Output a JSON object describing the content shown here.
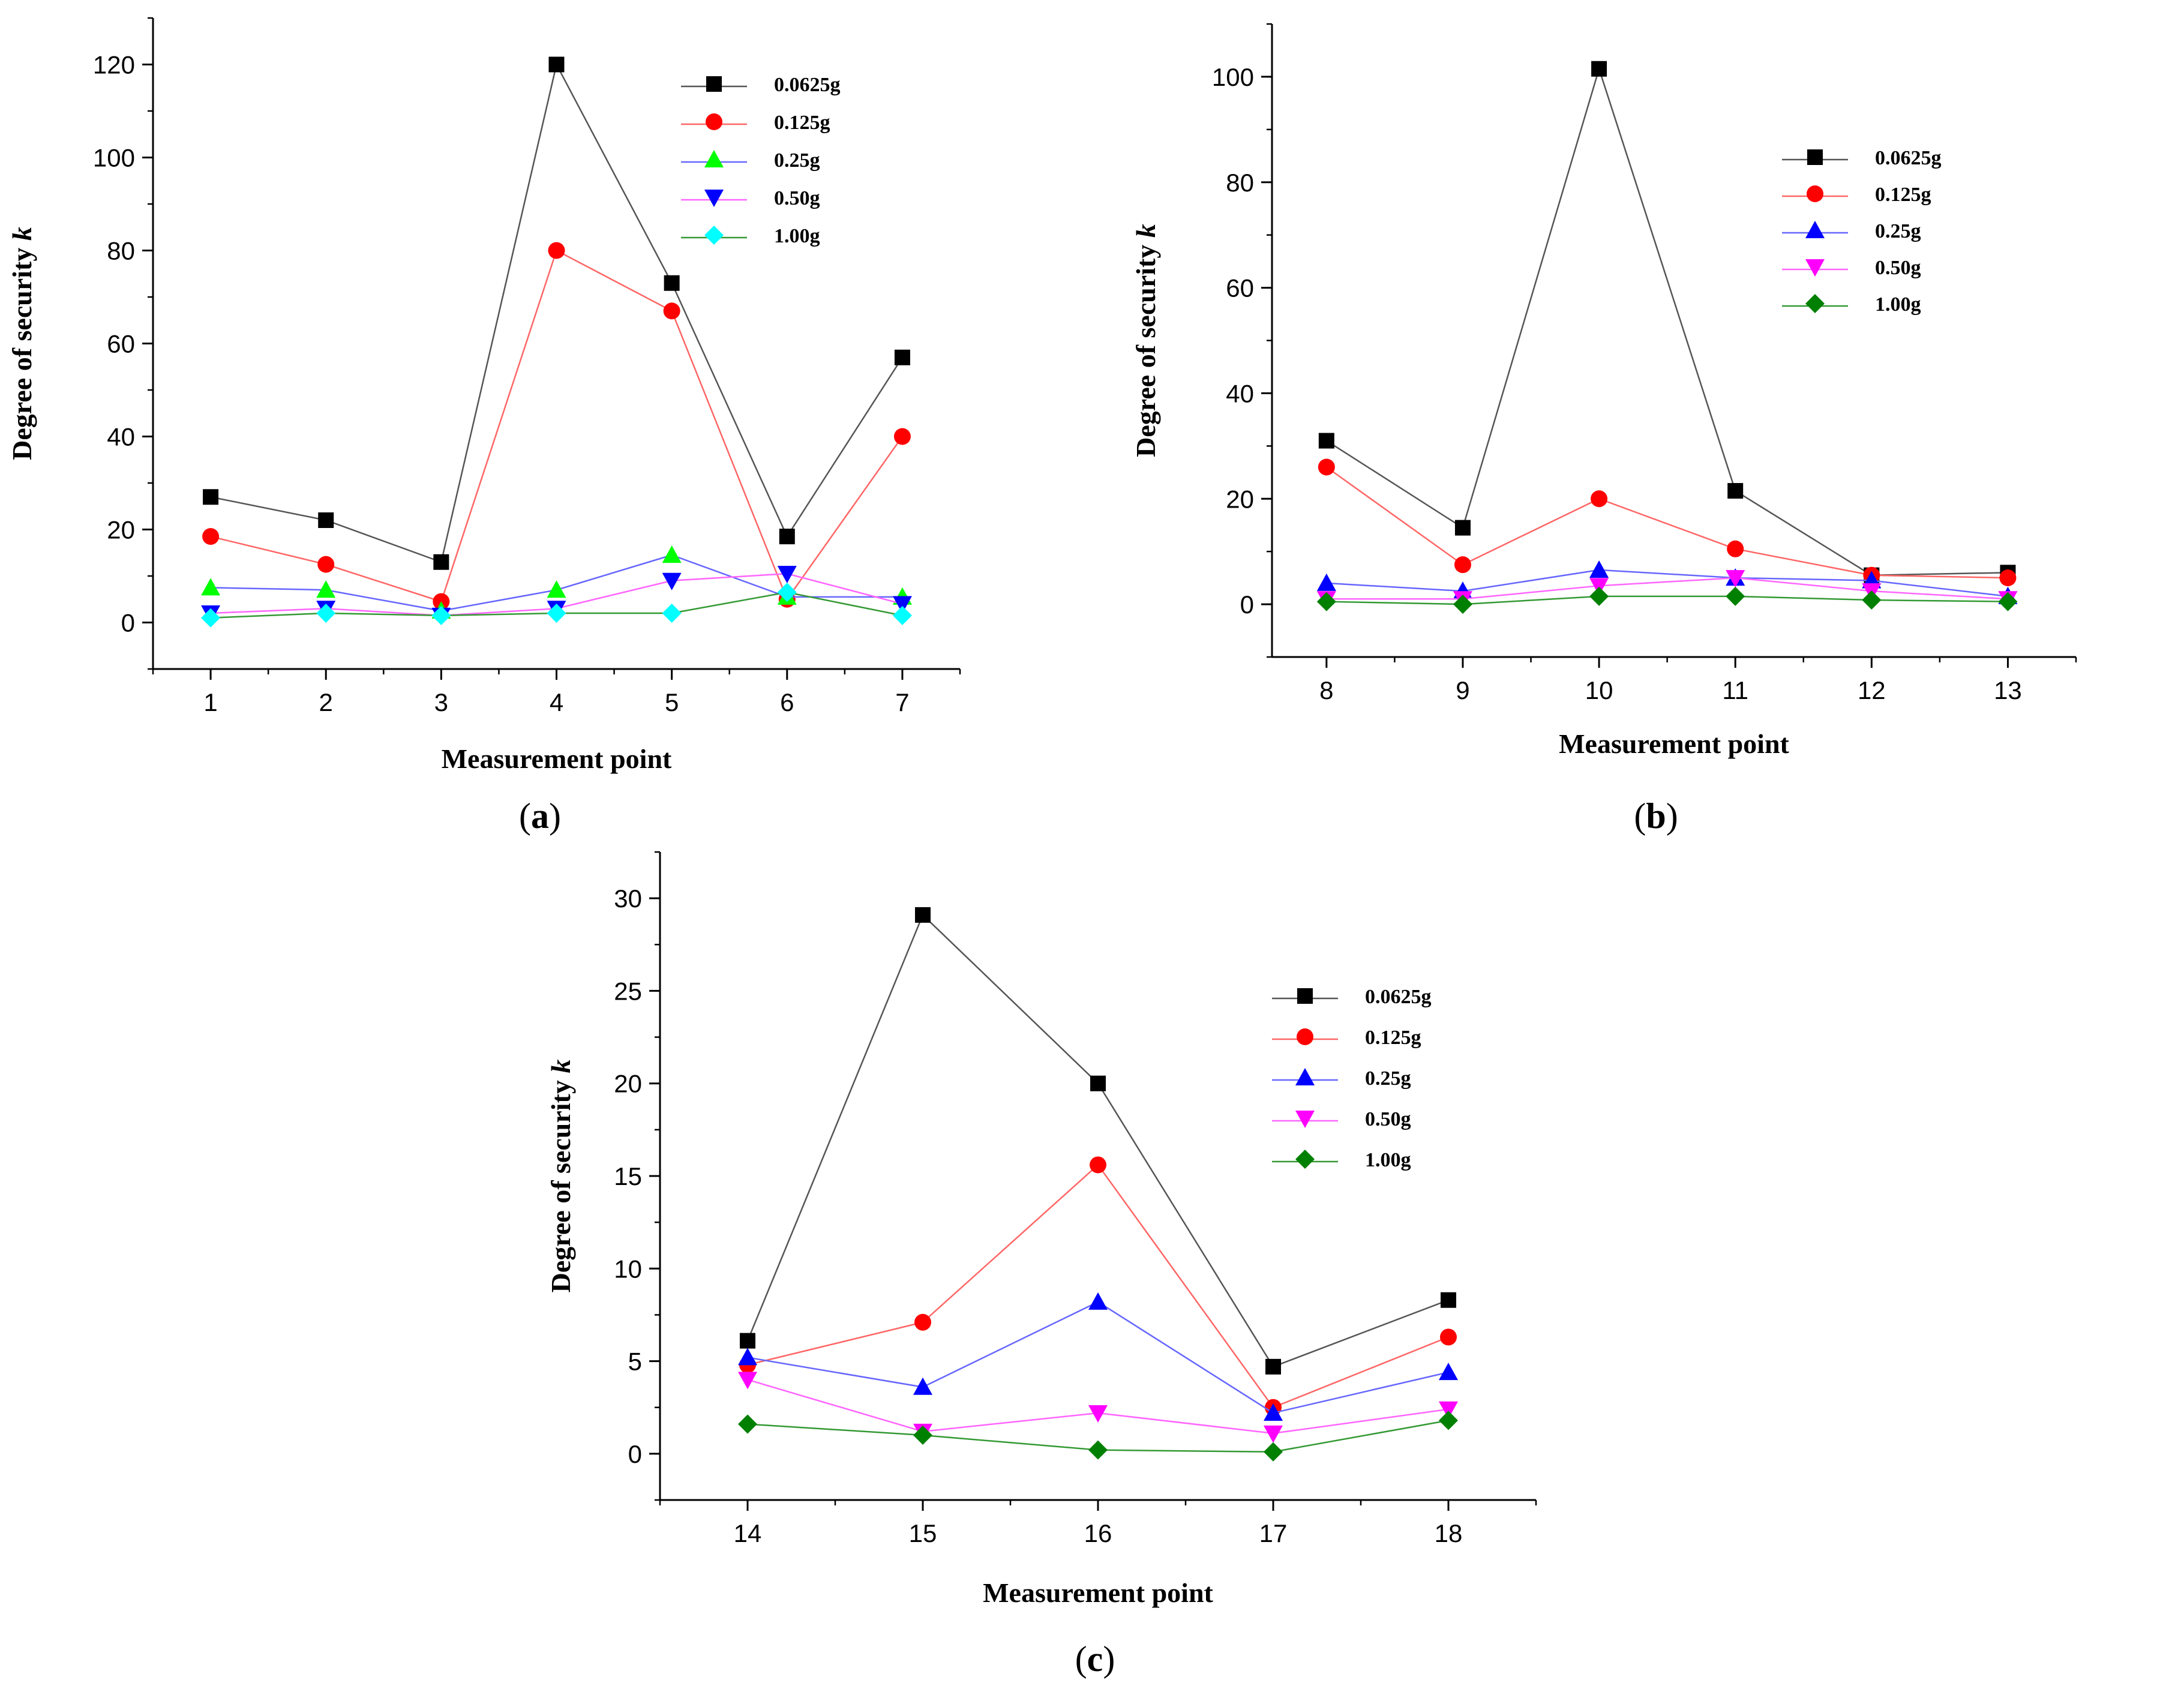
{
  "figure": {
    "panels": [
      {
        "caption_open": "(",
        "caption_letter": "a",
        "caption_close": ")"
      },
      {
        "caption_open": "(",
        "caption_letter": "b",
        "caption_close": ")"
      },
      {
        "caption_open": "(",
        "caption_letter": "c",
        "caption_close": ")"
      }
    ]
  },
  "series_styles": [
    {
      "color": "#000000",
      "line_color": "#555555",
      "marker": "square"
    },
    {
      "color": "#ff0000",
      "line_color": "#ff6666",
      "marker": "circle"
    },
    {
      "color_by_panel": [
        "#00ff00",
        "#0000ff",
        "#0000ff"
      ],
      "line_color_by_panel": [
        "#6666ff",
        "#6666ff",
        "#6666ff"
      ],
      "marker": "triangle-up"
    },
    {
      "color_by_panel": [
        "#0000ff",
        "#ff00ff",
        "#ff00ff"
      ],
      "line_color_by_panel": [
        "#ff66ff",
        "#ff66ff",
        "#ff66ff"
      ],
      "marker_by_panel": [
        "triangle-down",
        "triangle-down",
        "triangle-down"
      ]
    },
    {
      "color_by_panel": [
        "#00ffff",
        "#008000",
        "#008000"
      ],
      "line_color_by_panel": [
        "#339933",
        "#339933",
        "#339933"
      ],
      "marker": "diamond"
    }
  ],
  "chart_data": [
    {
      "type": "line",
      "xlabel": "Measurement point",
      "ylabel_prefix": "Degree of security ",
      "ylabel_italic": "k",
      "ylim": [
        -10,
        130
      ],
      "yticks": [
        0,
        20,
        40,
        60,
        80,
        100,
        120
      ],
      "yticks_minor_step": 10,
      "xlim": [
        0.5,
        7.5
      ],
      "x": [
        1,
        2,
        3,
        4,
        5,
        6,
        7
      ],
      "legend_position": "top-right",
      "series": [
        {
          "name": "0.0625g",
          "values": [
            27,
            22,
            13,
            120,
            73,
            18.5,
            57
          ]
        },
        {
          "name": "0.125g",
          "values": [
            18.5,
            12.5,
            4.5,
            80,
            67,
            5,
            40
          ]
        },
        {
          "name": "0.25g",
          "values": [
            7.5,
            7,
            2.5,
            7,
            14.5,
            5.5,
            5.5
          ]
        },
        {
          "name": "0.50g",
          "values": [
            2,
            3,
            1.5,
            3,
            9,
            10.5,
            4
          ]
        },
        {
          "name": "1.00g",
          "values": [
            1,
            2,
            1.5,
            2,
            2,
            6.5,
            1.5
          ]
        }
      ]
    },
    {
      "type": "line",
      "xlabel": "Measurement point",
      "ylabel_prefix": "Degree of security ",
      "ylabel_italic": "k",
      "ylim": [
        -10,
        110
      ],
      "yticks": [
        0,
        20,
        40,
        60,
        80,
        100
      ],
      "yticks_minor_step": 10,
      "xlim": [
        7.6,
        13.5
      ],
      "x": [
        8,
        9,
        10,
        11,
        12,
        13
      ],
      "legend_position": "top-right",
      "series": [
        {
          "name": "0.0625g",
          "values": [
            31,
            14.5,
            101.5,
            21.5,
            5.5,
            6
          ]
        },
        {
          "name": "0.125g",
          "values": [
            26,
            7.5,
            20,
            10.5,
            5.5,
            5
          ]
        },
        {
          "name": "0.25g",
          "values": [
            4,
            2.5,
            6.5,
            5,
            4.5,
            1.5
          ]
        },
        {
          "name": "0.50g",
          "values": [
            1,
            1,
            3.5,
            5,
            2.5,
            1
          ]
        },
        {
          "name": "1.00g",
          "values": [
            0.5,
            0,
            1.5,
            1.5,
            0.8,
            0.5
          ]
        }
      ]
    },
    {
      "type": "line",
      "xlabel": "Measurement point",
      "ylabel_prefix": "Degree of security ",
      "ylabel_italic": "k",
      "ylim": [
        -2.5,
        32.5
      ],
      "yticks": [
        0,
        5,
        10,
        15,
        20,
        25,
        30
      ],
      "yticks_minor_step": 2.5,
      "xlim": [
        13.5,
        18.5
      ],
      "x": [
        14,
        15,
        16,
        17,
        18
      ],
      "legend_position": "top-right",
      "series": [
        {
          "name": "0.0625g",
          "values": [
            6.1,
            29.1,
            20,
            4.7,
            8.3
          ]
        },
        {
          "name": "0.125g",
          "values": [
            4.8,
            7.1,
            15.6,
            2.5,
            6.3
          ]
        },
        {
          "name": "0.25g",
          "values": [
            5.2,
            3.6,
            8.2,
            2.2,
            4.4
          ]
        },
        {
          "name": "0.50g",
          "values": [
            4,
            1.2,
            2.2,
            1.1,
            2.4
          ]
        },
        {
          "name": "1.00g",
          "values": [
            1.6,
            1,
            0.2,
            0.1,
            1.8
          ]
        }
      ]
    }
  ]
}
